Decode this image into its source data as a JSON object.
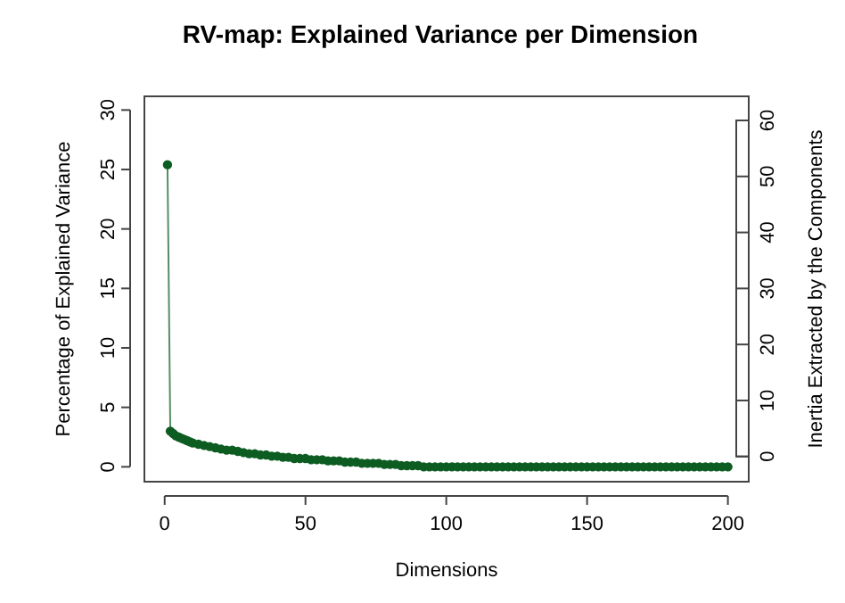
{
  "chart_data": {
    "type": "line",
    "title": "RV-map: Explained Variance per Dimension",
    "xlabel": "Dimensions",
    "ylabel": "Percentage of Explained Variance",
    "y2label": "Inertia Extracted by the Components",
    "xlim": [
      -7.2,
      207.4
    ],
    "xticks": [
      0,
      50,
      100,
      150,
      200
    ],
    "ylim": [
      -1.25,
      31.15
    ],
    "yticks": [
      0,
      5,
      10,
      15,
      20,
      25,
      30
    ],
    "y2lim": [
      -4.5,
      64.3
    ],
    "y2ticks": [
      0,
      10,
      20,
      30,
      40,
      50,
      60
    ],
    "marker": "circle",
    "line_style": "solid",
    "grid": false,
    "series": [
      {
        "color": "#0d5c22",
        "x": [
          1,
          2,
          3,
          4,
          5,
          6,
          7,
          8,
          9,
          10,
          12,
          14,
          16,
          18,
          20,
          22,
          24,
          26,
          28,
          30,
          32,
          34,
          36,
          38,
          40,
          42,
          44,
          46,
          48,
          50,
          52,
          54,
          56,
          58,
          60,
          62,
          64,
          66,
          68,
          70,
          72,
          74,
          76,
          78,
          80,
          82,
          84,
          86,
          88,
          90,
          92,
          94,
          96,
          98,
          100,
          102,
          104,
          106,
          108,
          110,
          112,
          114,
          116,
          118,
          120,
          122,
          124,
          126,
          128,
          130,
          132,
          134,
          136,
          138,
          140,
          142,
          144,
          146,
          148,
          150,
          152,
          154,
          156,
          158,
          160,
          162,
          164,
          166,
          168,
          170,
          172,
          174,
          176,
          178,
          180,
          182,
          184,
          186,
          188,
          190,
          192,
          194,
          196,
          198,
          200
        ],
        "values": [
          25.4,
          3.0,
          2.8,
          2.6,
          2.5,
          2.4,
          2.3,
          2.2,
          2.1,
          2.0,
          1.9,
          1.8,
          1.7,
          1.6,
          1.5,
          1.4,
          1.4,
          1.3,
          1.2,
          1.1,
          1.1,
          1.0,
          1.0,
          0.9,
          0.9,
          0.8,
          0.8,
          0.7,
          0.7,
          0.7,
          0.6,
          0.6,
          0.6,
          0.5,
          0.5,
          0.5,
          0.4,
          0.4,
          0.4,
          0.3,
          0.3,
          0.3,
          0.3,
          0.2,
          0.2,
          0.2,
          0.1,
          0.1,
          0.1,
          0.1,
          0,
          0,
          0,
          0,
          0,
          0,
          0,
          0,
          0,
          0,
          0,
          0,
          0,
          0,
          0,
          0,
          0,
          0,
          0,
          0,
          0,
          0,
          0,
          0,
          0,
          0,
          0,
          0,
          0,
          0,
          0,
          0,
          0,
          0,
          0,
          0,
          0,
          0,
          0,
          0,
          0,
          0,
          0,
          0,
          0,
          0,
          0,
          0,
          0,
          0,
          0,
          0,
          0,
          0,
          0
        ]
      }
    ]
  }
}
